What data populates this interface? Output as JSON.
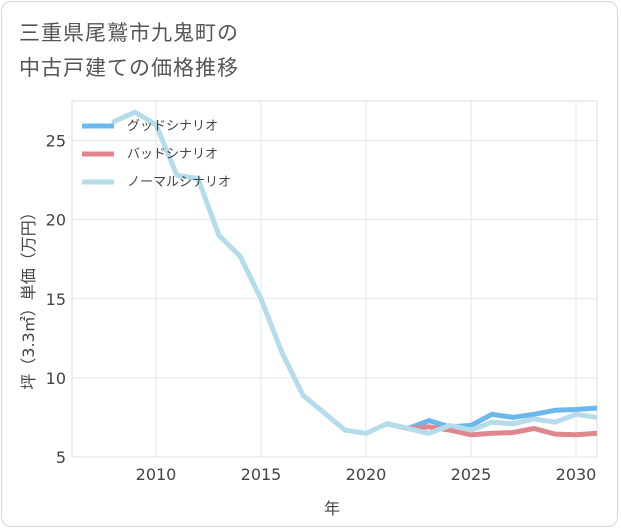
{
  "title_line1": "三重県尾鷲市九鬼町の",
  "title_line2": "中古戸建ての価格推移",
  "chart_data": {
    "type": "line",
    "xlabel": "年",
    "ylabel": "坪（3.3㎡）単価（万円）",
    "xlim": [
      2006,
      2031
    ],
    "ylim": [
      5,
      27.5
    ],
    "x_ticks": [
      2010,
      2015,
      2020,
      2025,
      2030
    ],
    "y_ticks": [
      5,
      10,
      15,
      20,
      25
    ],
    "grid": true,
    "legend_position": "top-left",
    "series": [
      {
        "name": "グッドシナリオ",
        "color": "#6bb8ec",
        "x": [
          2021,
          2022,
          2023,
          2024,
          2025,
          2026,
          2027,
          2028,
          2029,
          2030,
          2031
        ],
        "y": [
          7.1,
          6.8,
          7.3,
          6.9,
          7.0,
          7.7,
          7.5,
          7.7,
          7.95,
          8.0,
          8.1
        ]
      },
      {
        "name": "バッドシナリオ",
        "color": "#e0868f",
        "x": [
          2021,
          2022,
          2023,
          2024,
          2025,
          2026,
          2027,
          2028,
          2029,
          2030,
          2031
        ],
        "y": [
          7.1,
          6.8,
          6.9,
          6.7,
          6.4,
          6.5,
          6.55,
          6.8,
          6.45,
          6.4,
          6.5
        ]
      },
      {
        "name": "ノーマルシナリオ",
        "color": "#b5dcea",
        "x": [
          2008,
          2009,
          2010,
          2011,
          2012,
          2013,
          2014,
          2015,
          2016,
          2017,
          2018,
          2019,
          2020,
          2021,
          2022,
          2023,
          2024,
          2025,
          2026,
          2027,
          2028,
          2029,
          2030,
          2031
        ],
        "y": [
          26.2,
          26.8,
          26.0,
          22.8,
          22.6,
          19.0,
          17.7,
          15.0,
          11.6,
          8.9,
          7.8,
          6.7,
          6.5,
          7.1,
          6.8,
          6.5,
          7.0,
          6.7,
          7.2,
          7.1,
          7.4,
          7.2,
          7.7,
          7.5
        ]
      }
    ]
  }
}
